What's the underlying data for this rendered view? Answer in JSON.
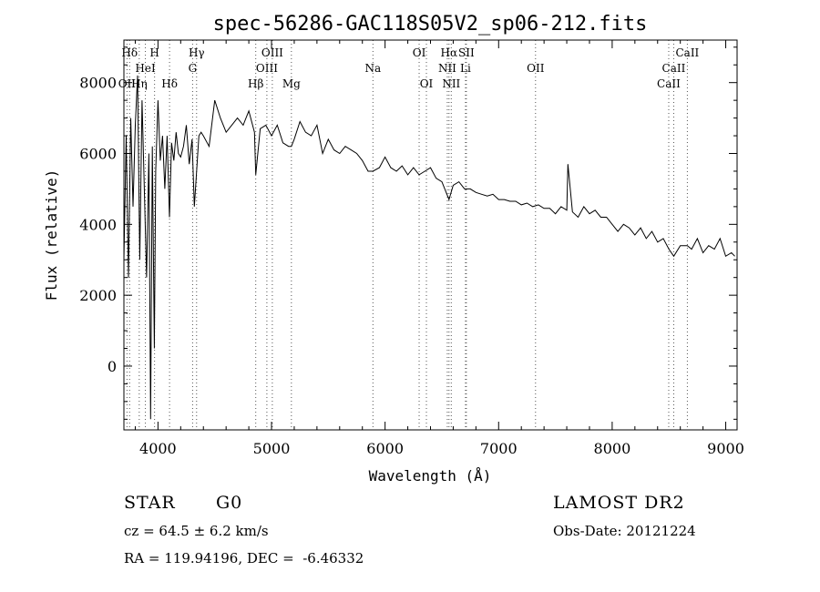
{
  "chart_data": {
    "type": "line",
    "title": "spec-56286-GAC118S05V2_sp06-212.fits",
    "xlabel": "Wavelength (Å)",
    "ylabel": "Flux (relative)",
    "xlim": [
      3700,
      9100
    ],
    "ylim": [
      -1800,
      9200
    ],
    "xticks": [
      4000,
      5000,
      6000,
      7000,
      8000,
      9000
    ],
    "yticks": [
      0,
      2000,
      4000,
      6000,
      8000
    ],
    "grid": false,
    "spectral_lines": [
      {
        "label": "Hδ",
        "wavelength": 3750,
        "row": 0
      },
      {
        "label": "H",
        "wavelength": 3970,
        "row": 0
      },
      {
        "label": "Hγ",
        "wavelength": 4340,
        "row": 0
      },
      {
        "label": "OIII",
        "wavelength": 5007,
        "row": 0
      },
      {
        "label": "OI",
        "wavelength": 6300,
        "row": 0
      },
      {
        "label": "Hα",
        "wavelength": 6563,
        "row": 0
      },
      {
        "label": "SII",
        "wavelength": 6716,
        "row": 0
      },
      {
        "label": "CaII",
        "wavelength": 8662,
        "row": 0
      },
      {
        "label": "HeI",
        "wavelength": 3889,
        "row": 1
      },
      {
        "label": "G",
        "wavelength": 4305,
        "row": 1
      },
      {
        "label": "OIII",
        "wavelength": 4959,
        "row": 1
      },
      {
        "label": "Na",
        "wavelength": 5893,
        "row": 1
      },
      {
        "label": "NII",
        "wavelength": 6548,
        "row": 1
      },
      {
        "label": "Li",
        "wavelength": 6708,
        "row": 1
      },
      {
        "label": "OII",
        "wavelength": 7325,
        "row": 1
      },
      {
        "label": "CaII",
        "wavelength": 8542,
        "row": 1
      },
      {
        "label": "OII",
        "wavelength": 3727,
        "row": 2
      },
      {
        "label": "Hη",
        "wavelength": 3835,
        "row": 2
      },
      {
        "label": "Hδ",
        "wavelength": 4102,
        "row": 2
      },
      {
        "label": "Hβ",
        "wavelength": 4861,
        "row": 2
      },
      {
        "label": "Mg",
        "wavelength": 5175,
        "row": 2
      },
      {
        "label": "OI",
        "wavelength": 6364,
        "row": 2
      },
      {
        "label": "NII",
        "wavelength": 6583,
        "row": 2
      },
      {
        "label": "CaII",
        "wavelength": 8498,
        "row": 2
      }
    ],
    "series": [
      {
        "x": [
          3700,
          3720,
          3740,
          3760,
          3780,
          3800,
          3820,
          3840,
          3860,
          3880,
          3900,
          3920,
          3935,
          3950,
          3968,
          3980,
          4000,
          4020,
          4040,
          4060,
          4080,
          4101,
          4120,
          4140,
          4160,
          4180,
          4200,
          4225,
          4250,
          4275,
          4300,
          4320,
          4340,
          4360,
          4380,
          4400,
          4450,
          4500,
          4550,
          4600,
          4650,
          4700,
          4750,
          4800,
          4850,
          4861,
          4900,
          4950,
          5000,
          5050,
          5100,
          5150,
          5175,
          5200,
          5250,
          5300,
          5350,
          5400,
          5450,
          5500,
          5550,
          5600,
          5650,
          5700,
          5750,
          5800,
          5850,
          5893,
          5950,
          6000,
          6050,
          6100,
          6150,
          6200,
          6250,
          6300,
          6350,
          6400,
          6450,
          6500,
          6563,
          6600,
          6650,
          6700,
          6750,
          6800,
          6850,
          6900,
          6950,
          7000,
          7050,
          7100,
          7150,
          7200,
          7250,
          7300,
          7350,
          7400,
          7450,
          7500,
          7550,
          7600,
          7610,
          7650,
          7700,
          7750,
          7800,
          7850,
          7900,
          7950,
          8000,
          8050,
          8100,
          8150,
          8200,
          8250,
          8300,
          8350,
          8400,
          8450,
          8500,
          8542,
          8600,
          8662,
          8700,
          8750,
          8800,
          8850,
          8900,
          8950,
          9000,
          9050,
          9080
        ],
        "values": [
          3000,
          6500,
          2500,
          7000,
          4500,
          6800,
          8200,
          3000,
          7500,
          5000,
          2500,
          6000,
          -1500,
          6200,
          500,
          5500,
          7500,
          5800,
          6500,
          5000,
          6500,
          4200,
          6300,
          5800,
          6600,
          6000,
          5900,
          6200,
          6800,
          5700,
          6400,
          4500,
          5500,
          6500,
          6600,
          6500,
          6200,
          7500,
          7000,
          6600,
          6800,
          7000,
          6800,
          7200,
          6600,
          5400,
          6700,
          6800,
          6500,
          6800,
          6300,
          6200,
          6200,
          6400,
          6900,
          6600,
          6500,
          6800,
          6000,
          6400,
          6100,
          6000,
          6200,
          6100,
          6000,
          5800,
          5500,
          5500,
          5600,
          5900,
          5600,
          5500,
          5650,
          5400,
          5600,
          5400,
          5500,
          5600,
          5300,
          5200,
          4700,
          5100,
          5200,
          5000,
          5000,
          4900,
          4850,
          4800,
          4850,
          4700,
          4700,
          4650,
          4650,
          4550,
          4600,
          4500,
          4550,
          4450,
          4450,
          4300,
          4500,
          4400,
          5700,
          4350,
          4200,
          4500,
          4300,
          4400,
          4200,
          4200,
          4000,
          3800,
          4000,
          3900,
          3700,
          3900,
          3600,
          3800,
          3500,
          3600,
          3300,
          3100,
          3400,
          3400,
          3300,
          3600,
          3200,
          3400,
          3300,
          3600,
          3100,
          3200,
          3100
        ]
      }
    ]
  },
  "footer": {
    "class_label": "STAR",
    "subclass_label": "G0",
    "survey_label": "LAMOST DR2",
    "redshift_text": "cz = 64.5 ± 6.2 km/s",
    "obs_date_text": "Obs-Date: 20121224",
    "coords_text": "RA = 119.94196, DEC =  -6.46332"
  }
}
